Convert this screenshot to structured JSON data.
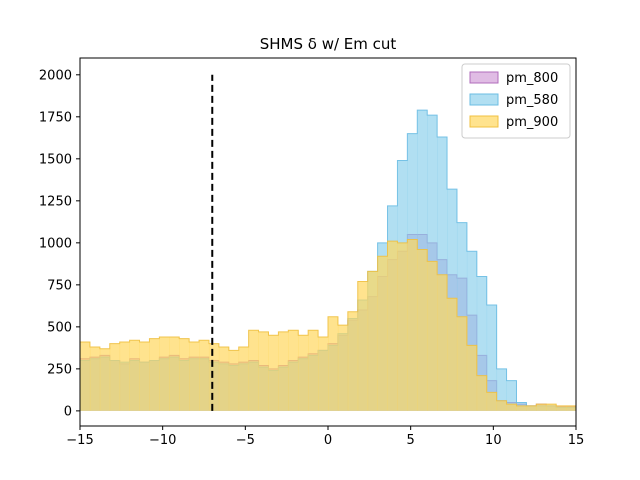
{
  "chart_data": {
    "type": "area",
    "title": "SHMS δ w/ Em cut",
    "xlabel": "",
    "ylabel": "",
    "xlim": [
      -15,
      15
    ],
    "ylim": [
      -90,
      2100
    ],
    "x_ticks": [
      -15,
      -10,
      -5,
      0,
      5,
      10,
      15
    ],
    "x_tick_labels": [
      "−15",
      "−10",
      "−5",
      "0",
      "5",
      "10",
      "15"
    ],
    "y_ticks": [
      0,
      250,
      500,
      750,
      1000,
      1250,
      1500,
      1750,
      2000
    ],
    "y_tick_labels": [
      "0",
      "250",
      "500",
      "750",
      "1000",
      "1250",
      "1500",
      "1750",
      "2000"
    ],
    "bins": {
      "start": -15,
      "width": 0.6,
      "count": 50
    },
    "legend_position": "top-right",
    "grid": false,
    "series": [
      {
        "name": "pm_800",
        "fill": "#c27ac9",
        "edge": "#b06cbb",
        "alpha": 0.5,
        "values": [
          310,
          320,
          330,
          300,
          280,
          310,
          290,
          300,
          320,
          330,
          310,
          320,
          320,
          300,
          290,
          280,
          290,
          300,
          270,
          250,
          270,
          300,
          320,
          340,
          360,
          400,
          450,
          540,
          600,
          680,
          800,
          900,
          950,
          1050,
          1050,
          1000,
          900,
          810,
          790,
          570,
          330,
          180,
          60,
          50,
          40,
          30,
          40,
          30,
          25,
          25
        ]
      },
      {
        "name": "pm_580",
        "fill": "#87ceeb",
        "edge": "#6bbde3",
        "alpha": 0.65,
        "values": [
          300,
          310,
          320,
          300,
          290,
          300,
          290,
          300,
          310,
          320,
          300,
          310,
          310,
          290,
          280,
          270,
          280,
          290,
          260,
          240,
          260,
          290,
          310,
          330,
          360,
          390,
          460,
          550,
          660,
          830,
          1000,
          1220,
          1490,
          1650,
          1790,
          1760,
          1630,
          1320,
          1120,
          950,
          800,
          630,
          250,
          180,
          50,
          30,
          30,
          30,
          20,
          20
        ]
      },
      {
        "name": "pm_900",
        "fill": "#ffd75e",
        "edge": "#f0c040",
        "alpha": 0.7,
        "values": [
          410,
          380,
          370,
          400,
          410,
          420,
          410,
          430,
          440,
          440,
          430,
          410,
          420,
          400,
          380,
          360,
          380,
          480,
          470,
          450,
          470,
          480,
          450,
          480,
          440,
          560,
          510,
          590,
          770,
          830,
          920,
          1010,
          1000,
          1020,
          960,
          890,
          810,
          670,
          560,
          390,
          210,
          110,
          60,
          40,
          30,
          30,
          40,
          40,
          30,
          30
        ]
      }
    ],
    "annotations": [
      {
        "type": "vertical-dashed-line",
        "x": -7,
        "y_from": 0,
        "y_to": 2000,
        "color": "#000000"
      }
    ]
  }
}
